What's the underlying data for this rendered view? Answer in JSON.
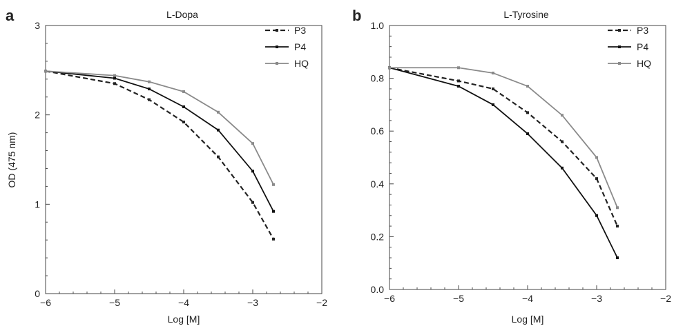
{
  "chart_data": [
    {
      "panel": "a",
      "type": "line",
      "title": "L-Dopa",
      "xlabel": "Log [M]",
      "ylabel": "OD (475 nm)",
      "xlim": [
        -6,
        -2
      ],
      "ylim": [
        0,
        3
      ],
      "xticks": [
        "−6",
        "−5",
        "−4",
        "−3",
        "−2"
      ],
      "yticks": [
        "0",
        "1",
        "2",
        "3"
      ],
      "legend_position": "top-right",
      "grid": false,
      "series": [
        {
          "name": "P3",
          "style": "dashed",
          "color": "#222222",
          "x": [
            -6,
            -5,
            -4.5,
            -4,
            -3.5,
            -3,
            -2.7
          ],
          "y": [
            2.49,
            2.35,
            2.17,
            1.92,
            1.53,
            1.02,
            0.61
          ]
        },
        {
          "name": "P4",
          "style": "solid",
          "color": "#111111",
          "x": [
            -6,
            -5,
            -4.5,
            -4,
            -3.5,
            -3,
            -2.7
          ],
          "y": [
            2.49,
            2.41,
            2.29,
            2.09,
            1.83,
            1.37,
            0.92
          ]
        },
        {
          "name": "HQ",
          "style": "solid",
          "color": "#8a8a8a",
          "x": [
            -6,
            -5,
            -4.5,
            -4,
            -3.5,
            -3,
            -2.7
          ],
          "y": [
            2.49,
            2.44,
            2.37,
            2.26,
            2.03,
            1.68,
            1.22
          ]
        }
      ]
    },
    {
      "panel": "b",
      "type": "line",
      "title": "L-Tyrosine",
      "xlabel": "Log [M]",
      "ylabel": "",
      "xlim": [
        -6,
        -2
      ],
      "ylim": [
        0,
        1
      ],
      "xticks": [
        "−6",
        "−5",
        "−4",
        "−3",
        "−2"
      ],
      "yticks": [
        "0.0",
        "0.2",
        "0.4",
        "0.6",
        "0.8",
        "1.0"
      ],
      "legend_position": "top-right",
      "grid": false,
      "series": [
        {
          "name": "P3",
          "style": "dashed",
          "color": "#222222",
          "x": [
            -6,
            -5,
            -4.5,
            -4,
            -3.5,
            -3,
            -2.7
          ],
          "y": [
            0.84,
            0.79,
            0.76,
            0.67,
            0.56,
            0.42,
            0.24
          ]
        },
        {
          "name": "P4",
          "style": "solid",
          "color": "#111111",
          "x": [
            -6,
            -5,
            -4.5,
            -4,
            -3.5,
            -3,
            -2.7
          ],
          "y": [
            0.84,
            0.77,
            0.7,
            0.59,
            0.46,
            0.28,
            0.12
          ]
        },
        {
          "name": "HQ",
          "style": "solid",
          "color": "#8a8a8a",
          "x": [
            -6,
            -5,
            -4.5,
            -4,
            -3.5,
            -3,
            -2.7
          ],
          "y": [
            0.84,
            0.84,
            0.82,
            0.77,
            0.66,
            0.5,
            0.31
          ]
        }
      ]
    }
  ]
}
